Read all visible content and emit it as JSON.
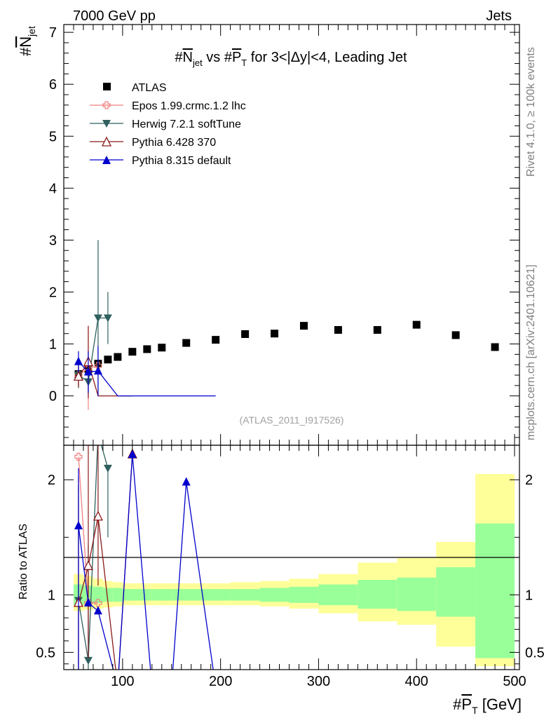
{
  "header": {
    "left": "7000 GeV pp",
    "right": "Jets"
  },
  "side": {
    "rivet": "Rivet 4.1.0, ≥ 100k events",
    "mcplots": "mcplots.cern.ch [arXiv:2401.10621]"
  },
  "chart_data": {
    "type": "scatter",
    "title": "#N_jet vs #P_T for 3<|Δy|<4, Leading Jet",
    "title_parts": {
      "hash1": "#",
      "n": "N",
      "jet": "jet",
      "vs": " vs #",
      "p": "P",
      "t": "T",
      "rest": " for 3<|Δy|<4, Leading Jet"
    },
    "analysis_tag": "(ATLAS_2011_I917526)",
    "ylabel": {
      "hash": "#",
      "n": "N",
      "sub": "jet"
    },
    "ratio_ylabel": "Ratio to ATLAS",
    "xlabel": {
      "hash": "#",
      "p": "P",
      "sub": "T",
      "unit": " [GeV]"
    },
    "xlim": [
      40,
      505
    ],
    "ylim": [
      -0.95,
      7.15
    ],
    "ratio_ylim": [
      0.35,
      2.3
    ],
    "x_ticks": [
      100,
      200,
      300,
      400,
      500
    ],
    "x_tick_labels": [
      "100",
      "200",
      "300",
      "400",
      "500"
    ],
    "y_ticks": [
      0,
      1,
      2,
      3,
      4,
      5,
      6,
      7
    ],
    "y_tick_labels": [
      "0",
      "1",
      "2",
      "3",
      "4",
      "5",
      "6",
      "7"
    ],
    "ratio_ticks": [
      0.5,
      1,
      2
    ],
    "ratio_tick_labels": [
      "0.5",
      "1",
      "2"
    ],
    "legend": [
      {
        "label": "ATLAS",
        "color": "#000000",
        "marker": "square"
      },
      {
        "label": "Epos 1.99.crmc.1.2 lhc",
        "color": "#f08080",
        "marker": "cross"
      },
      {
        "label": "Herwig 7.2.1 softTune",
        "color": "#2f5f5f",
        "marker": "triangle-down"
      },
      {
        "label": "Pythia 6.428 370",
        "color": "#8b1a1a",
        "marker": "triangle-up-open"
      },
      {
        "label": "Pythia 8.315 default",
        "color": "#0000cd",
        "marker": "triangle-up"
      }
    ],
    "atlas": {
      "x": [
        55,
        65,
        75,
        85,
        95,
        110,
        125,
        140,
        165,
        195,
        225,
        255,
        285,
        320,
        360,
        400,
        440,
        480
      ],
      "y": [
        0.42,
        0.52,
        0.62,
        0.7,
        0.75,
        0.85,
        0.9,
        0.93,
        1.02,
        1.08,
        1.19,
        1.2,
        1.35,
        1.27,
        1.27,
        1.37,
        1.17,
        0.94
      ]
    },
    "bands": {
      "edges": [
        50,
        60,
        70,
        80,
        90,
        100,
        120,
        130,
        150,
        180,
        210,
        240,
        270,
        300,
        340,
        380,
        420,
        460,
        500
      ],
      "green_up": [
        1.09,
        1.08,
        1.07,
        1.06,
        1.06,
        1.05,
        1.05,
        1.05,
        1.05,
        1.05,
        1.05,
        1.06,
        1.07,
        1.09,
        1.13,
        1.15,
        1.24,
        1.62
      ],
      "green_dn": [
        0.91,
        0.92,
        0.93,
        0.94,
        0.94,
        0.95,
        0.95,
        0.95,
        0.95,
        0.95,
        0.95,
        0.94,
        0.93,
        0.91,
        0.88,
        0.86,
        0.81,
        0.45
      ],
      "yellow_up": [
        1.18,
        1.16,
        1.14,
        1.12,
        1.11,
        1.1,
        1.1,
        1.1,
        1.1,
        1.1,
        1.11,
        1.12,
        1.14,
        1.18,
        1.28,
        1.32,
        1.46,
        2.05
      ],
      "yellow_dn": [
        0.86,
        0.87,
        0.88,
        0.89,
        0.9,
        0.91,
        0.91,
        0.91,
        0.91,
        0.91,
        0.91,
        0.9,
        0.88,
        0.84,
        0.77,
        0.74,
        0.55,
        0.38
      ]
    },
    "series": [
      {
        "name": "Epos 1.99.crmc.1.2 lhc",
        "color": "#f08080",
        "marker": "cross",
        "x": [
          55,
          65,
          75
        ],
        "y": [
          0.4,
          0.53,
          0.58
        ],
        "err": [
          0.22,
          0.8,
          0.0
        ],
        "ratio": [
          2.2,
          0.93,
          0.93
        ],
        "ratio_err_up": [
          0.0,
          0.3,
          0.0
        ],
        "ratio_err_dn": [
          0.0,
          0.3,
          0.0
        ]
      },
      {
        "name": "Herwig 7.2.1 softTune",
        "color": "#2f5f5f",
        "marker": "triangle-down",
        "x": [
          55,
          65,
          75,
          85
        ],
        "y": [
          0.4,
          0.27,
          1.5,
          1.5
        ],
        "err": [
          0.25,
          0.27,
          1.5,
          0.5
        ],
        "ratio": [
          0.95,
          0.43,
          2.4,
          2.1
        ],
        "ratio_err_up": [
          1.0,
          1.0,
          0.0,
          0.0
        ],
        "ratio_err_dn": [
          0.6,
          0.43,
          0.0,
          0.6
        ]
      },
      {
        "name": "Pythia 6.428 370",
        "color": "#8b1a1a",
        "marker": "triangle-up-open",
        "x": [
          55,
          65,
          75,
          95,
          110
        ],
        "y": [
          0.37,
          0.65,
          0.0,
          0.0,
          0.0
        ],
        "err": [
          0.2,
          0.7,
          0.0,
          0.0,
          0.0
        ],
        "ratio": [
          0.93,
          1.25,
          1.68,
          0.2,
          2.22
        ],
        "ratio_err_up": [
          1.1,
          1.1,
          1.0,
          0.0,
          0.0
        ],
        "ratio_err_dn": [
          0.93,
          0.8,
          0.6,
          0.0,
          0.0
        ]
      },
      {
        "name": "Pythia 8.315 default",
        "color": "#0000cd",
        "marker": "triangle-up",
        "x": [
          55,
          65,
          75,
          95,
          110,
          130,
          150,
          165,
          195
        ],
        "y": [
          0.66,
          0.46,
          0.48,
          0.0,
          0.0,
          0.0,
          0.0,
          0.0,
          0.0
        ],
        "err": [
          0.2,
          0.4,
          0.48,
          0.0,
          0.0,
          0.0,
          0.0,
          0.0,
          0.0
        ],
        "ratio": [
          1.6,
          0.93,
          0.86,
          0.2,
          2.22,
          0.2,
          0.2,
          1.98,
          0.2
        ],
        "ratio_err_up": [
          0.5,
          0.0,
          0.0,
          0.0,
          0.0,
          0.0,
          0.0,
          0.0,
          0.0
        ],
        "ratio_err_dn": [
          1.6,
          0.0,
          0.0,
          0.0,
          0.0,
          0.0,
          0.0,
          0.0,
          0.0
        ]
      }
    ]
  }
}
